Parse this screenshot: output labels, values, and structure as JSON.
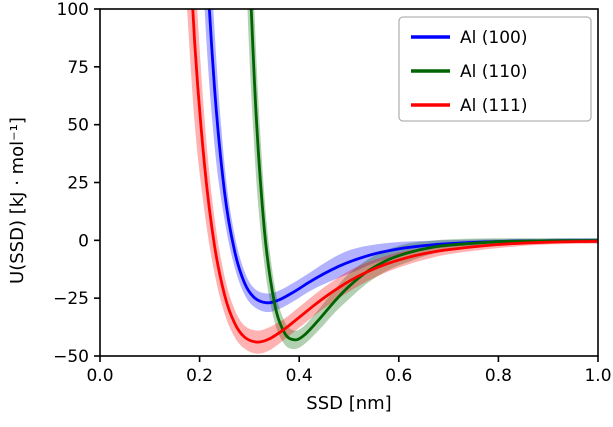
{
  "chart_data": {
    "type": "line",
    "title": "",
    "xlabel": "SSD [nm]",
    "ylabel": "U(SSD) [kJ · mol⁻¹]",
    "xlim": [
      0.0,
      1.0
    ],
    "ylim": [
      -50,
      100
    ],
    "xticks": [
      0.0,
      0.2,
      0.4,
      0.6,
      0.8,
      1.0
    ],
    "yticks": [
      -50,
      -25,
      0,
      25,
      50,
      75,
      100
    ],
    "xtick_labels": [
      "0.0",
      "0.2",
      "0.4",
      "0.6",
      "0.8",
      "1.0"
    ],
    "ytick_labels": [
      "−50",
      "−25",
      "0",
      "25",
      "50",
      "75",
      "100"
    ],
    "grid": false,
    "legend_position": "upper right",
    "band_opacity": 0.3,
    "series": [
      {
        "name": "Al (100)",
        "color": "#0000ff",
        "x": [
          0.19,
          0.21,
          0.23,
          0.25,
          0.27,
          0.29,
          0.31,
          0.335,
          0.36,
          0.39,
          0.42,
          0.45,
          0.48,
          0.51,
          0.55,
          0.6,
          0.65,
          0.7,
          0.8,
          0.9,
          1.0
        ],
        "y": [
          260,
          140,
          66,
          21,
          -4.4,
          -18.3,
          -24.8,
          -27,
          -25.7,
          -22.2,
          -18.1,
          -14.4,
          -11.2,
          -8.6,
          -5.9,
          -3.7,
          -2.3,
          -1.4,
          -0.5,
          -0.2,
          -0.1
        ],
        "band": [
          60,
          40,
          25,
          12,
          7,
          5,
          4,
          4,
          4,
          4,
          4,
          4.5,
          5,
          5,
          4,
          3,
          2,
          1.5,
          1,
          1,
          1
        ]
      },
      {
        "name": "Al (110)",
        "color": "#006400",
        "x": [
          0.27,
          0.29,
          0.31,
          0.33,
          0.35,
          0.37,
          0.39,
          0.41,
          0.44,
          0.47,
          0.5,
          0.54,
          0.58,
          0.62,
          0.66,
          0.7,
          0.8,
          0.9,
          1.0
        ],
        "y": [
          403,
          188,
          69,
          4.8,
          -26.7,
          -39.8,
          -43,
          -41,
          -34.2,
          -26.6,
          -19.9,
          -13,
          -8.3,
          -5.3,
          -3.3,
          -2.1,
          -0.6,
          -0.2,
          -0.1
        ],
        "band": [
          80,
          50,
          30,
          15,
          8,
          5,
          4,
          4,
          4.5,
          5,
          5.5,
          5,
          4.5,
          4,
          3,
          2.5,
          1.5,
          1,
          1
        ]
      },
      {
        "name": "Al (111)",
        "color": "#ff0000",
        "x": [
          0.17,
          0.19,
          0.21,
          0.23,
          0.25,
          0.27,
          0.29,
          0.315,
          0.34,
          0.37,
          0.4,
          0.43,
          0.46,
          0.5,
          0.54,
          0.58,
          0.62,
          0.66,
          0.7,
          0.8,
          0.9,
          1.0
        ],
        "y": [
          167,
          86,
          32.2,
          -2.3,
          -23.5,
          -35.7,
          -41.8,
          -44,
          -42.6,
          -38.4,
          -33.3,
          -28.1,
          -23.3,
          -17.7,
          -13.3,
          -9.9,
          -7.3,
          -5.4,
          -4.0,
          -1.8,
          -0.8,
          -0.4
        ],
        "band": [
          50,
          35,
          20,
          12,
          8,
          6,
          5,
          5,
          5,
          4.5,
          4.5,
          4.5,
          4.5,
          4.5,
          4,
          3.5,
          3,
          2.5,
          2,
          1.5,
          1,
          1
        ]
      }
    ]
  }
}
